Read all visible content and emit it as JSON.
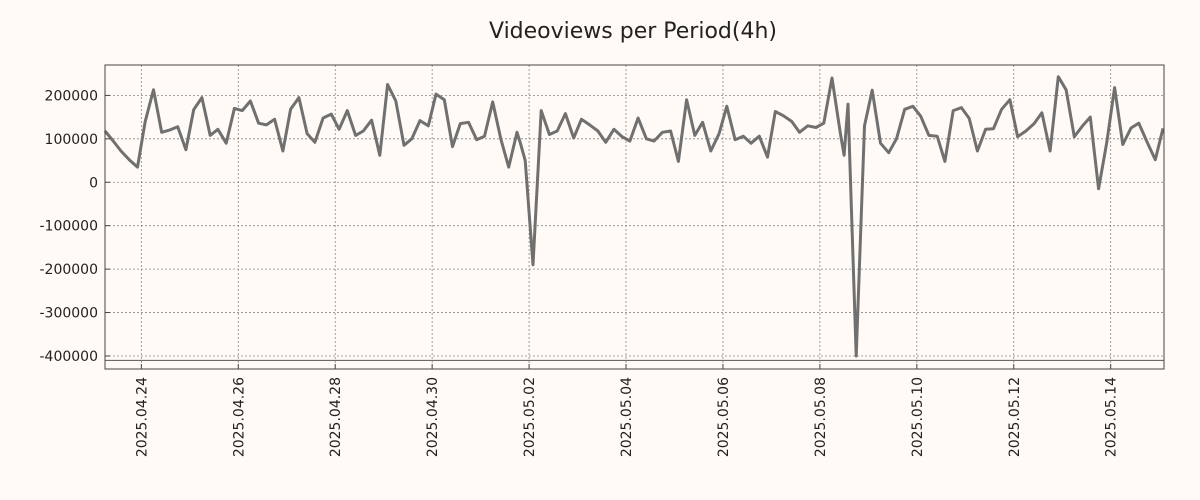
{
  "chart_data": {
    "type": "line",
    "title": "Videoviews per Period(4h)",
    "xlabel": "",
    "ylabel": "",
    "grid": true,
    "ylim": [
      -430000,
      270000
    ],
    "yticks": [
      200000,
      100000,
      0,
      -100000,
      -200000,
      -300000,
      -400000
    ],
    "ytick_labels": [
      "200000",
      "100000",
      "0",
      "-100000",
      "-200000",
      "-300000",
      "-400000"
    ],
    "xlim_days": [
      -0.75,
      21.1
    ],
    "xticks": [
      {
        "day": 0,
        "label": "2025.04.24"
      },
      {
        "day": 2,
        "label": "2025.04.26"
      },
      {
        "day": 4,
        "label": "2025.04.28"
      },
      {
        "day": 6,
        "label": "2025.04.30"
      },
      {
        "day": 8,
        "label": "2025.05.02"
      },
      {
        "day": 10,
        "label": "2025.05.04"
      },
      {
        "day": 12,
        "label": "2025.05.06"
      },
      {
        "day": 14,
        "label": "2025.05.08"
      },
      {
        "day": 16,
        "label": "2025.05.10"
      },
      {
        "day": 18,
        "label": "2025.05.12"
      },
      {
        "day": 20,
        "label": "2025.05.14"
      }
    ],
    "reference_line": -410000,
    "line_color": "#707070",
    "series": [
      {
        "name": "Videoviews per Period(4h)",
        "x_days": [
          -0.75,
          -0.58,
          -0.42,
          -0.25,
          -0.08,
          0.08,
          0.25,
          0.42,
          0.58,
          0.75,
          0.92,
          1.08,
          1.25,
          1.42,
          1.58,
          1.75,
          1.92,
          2.08,
          2.25,
          2.42,
          2.58,
          2.75,
          2.92,
          3.08,
          3.25,
          3.42,
          3.58,
          3.75,
          3.92,
          4.08,
          4.25,
          4.42,
          4.58,
          4.75,
          4.92,
          5.08,
          5.25,
          5.42,
          5.58,
          5.75,
          5.92,
          6.08,
          6.25,
          6.42,
          6.58,
          6.75,
          6.92,
          7.08,
          7.25,
          7.42,
          7.58,
          7.75,
          7.82,
          7.92,
          8.08,
          8.25,
          8.42,
          8.58,
          8.75,
          8.92,
          9.08,
          9.25,
          9.42,
          9.58,
          9.75,
          9.92,
          10.08,
          10.25,
          10.42,
          10.58,
          10.75,
          10.92,
          11.08,
          11.25,
          11.42,
          11.58,
          11.75,
          11.92,
          12.08,
          12.25,
          12.42,
          12.58,
          12.75,
          12.92,
          13.08,
          13.25,
          13.42,
          13.58,
          13.75,
          13.92,
          14.08,
          14.25,
          14.42,
          14.5,
          14.58,
          14.75,
          14.92,
          15.08,
          15.25,
          15.42,
          15.58,
          15.75,
          15.92,
          16.08,
          16.25,
          16.42,
          16.58,
          16.75,
          16.92,
          17.08,
          17.25,
          17.42,
          17.58,
          17.75,
          17.92,
          18.08,
          18.25,
          18.42,
          18.58,
          18.75,
          18.92,
          19.08,
          19.25,
          19.42,
          19.58,
          19.75,
          19.92,
          20.08,
          20.25,
          20.42,
          20.58,
          20.75,
          20.92,
          21.08
        ],
        "values": [
          118000,
          95000,
          72000,
          52000,
          35000,
          140000,
          213000,
          115000,
          120000,
          128000,
          75000,
          167000,
          195000,
          108000,
          122000,
          90000,
          170000,
          165000,
          187000,
          136000,
          132000,
          145000,
          72000,
          168000,
          195000,
          112000,
          92000,
          148000,
          157000,
          122000,
          165000,
          108000,
          118000,
          143000,
          62000,
          225000,
          187000,
          85000,
          100000,
          142000,
          130000,
          203000,
          190000,
          82000,
          135000,
          138000,
          98000,
          106000,
          185000,
          98000,
          35000,
          115000,
          90000,
          50000,
          -190000,
          165000,
          110000,
          118000,
          158000,
          102000,
          145000,
          132000,
          118000,
          92000,
          122000,
          105000,
          95000,
          148000,
          100000,
          95000,
          115000,
          118000,
          48000,
          190000,
          108000,
          138000,
          72000,
          112000,
          175000,
          98000,
          106000,
          90000,
          106000,
          58000,
          163000,
          153000,
          140000,
          115000,
          130000,
          126000,
          136000,
          240000,
          115000,
          62000,
          180000,
          -400000,
          130000,
          212000,
          90000,
          68000,
          100000,
          168000,
          175000,
          152000,
          108000,
          106000,
          48000,
          165000,
          172000,
          147000,
          72000,
          122000,
          123000,
          168000,
          190000,
          105000,
          118000,
          135000,
          160000,
          72000,
          243000,
          213000,
          105000,
          130000,
          150000,
          -15000,
          92000,
          218000,
          87000,
          125000,
          136000,
          93000,
          52000,
          124000
        ]
      }
    ]
  }
}
